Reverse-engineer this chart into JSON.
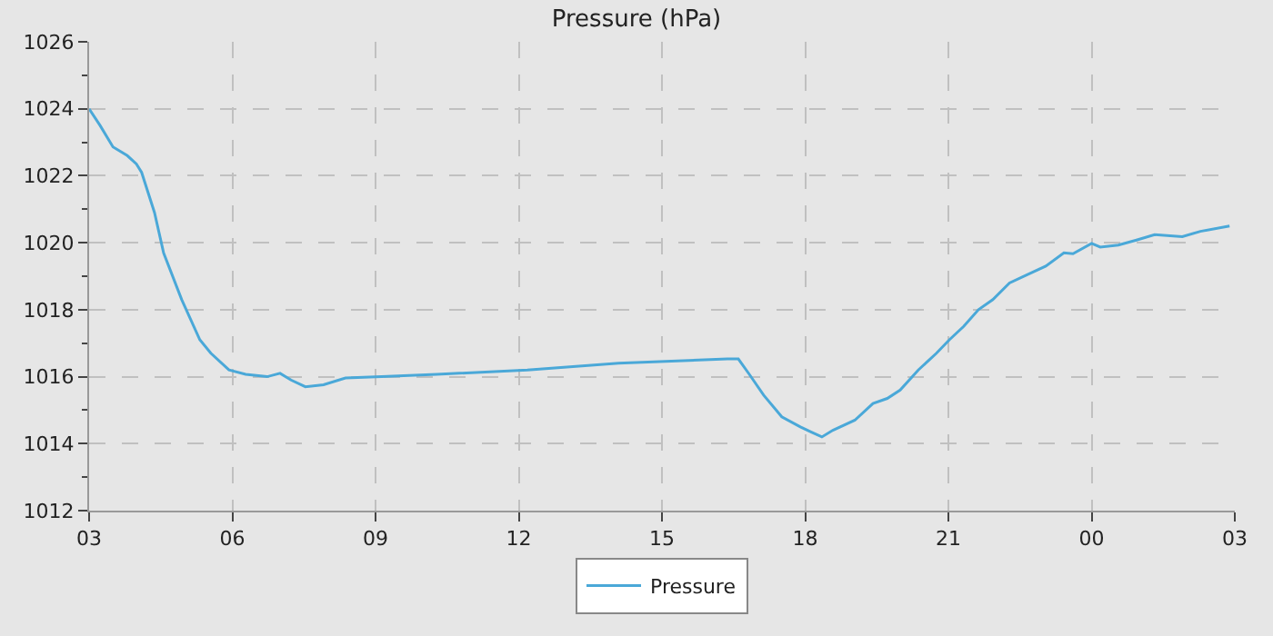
{
  "chart_data": {
    "type": "line",
    "title": "Pressure (hPa)",
    "legend": "bottom",
    "grid": true,
    "marker": "none",
    "line_style": "solid",
    "xlim": [
      3,
      27
    ],
    "xticks": [
      {
        "value": 3,
        "label": "03"
      },
      {
        "value": 6,
        "label": "06"
      },
      {
        "value": 9,
        "label": "09"
      },
      {
        "value": 12,
        "label": "12"
      },
      {
        "value": 15,
        "label": "15"
      },
      {
        "value": 18,
        "label": "18"
      },
      {
        "value": 21,
        "label": "21"
      },
      {
        "value": 24,
        "label": "00"
      },
      {
        "value": 27,
        "label": "03"
      }
    ],
    "ylim": [
      1012,
      1026
    ],
    "yticks": [
      1012,
      1014,
      1016,
      1018,
      1020,
      1022,
      1024,
      1026
    ],
    "x": [
      3.0,
      3.23,
      3.5,
      3.8,
      3.99,
      4.1,
      4.37,
      4.56,
      4.94,
      5.32,
      5.55,
      5.93,
      6.28,
      6.73,
      7.0,
      7.23,
      7.53,
      7.91,
      8.37,
      9.13,
      10.28,
      12.18,
      14.09,
      16.37,
      16.6,
      16.83,
      17.13,
      17.51,
      17.9,
      18.12,
      18.35,
      18.58,
      19.04,
      19.42,
      19.72,
      19.99,
      20.37,
      20.75,
      21.02,
      21.32,
      21.63,
      21.93,
      22.28,
      22.66,
      23.04,
      23.42,
      23.61,
      24.0,
      24.18,
      24.56,
      24.94,
      25.32,
      25.9,
      26.28,
      26.89
    ],
    "series": [
      {
        "name": "Pressure",
        "color": "#4aa8d8",
        "values": [
          1024.0,
          1023.5,
          1022.86,
          1022.6,
          1022.35,
          1022.1,
          1020.9,
          1019.7,
          1018.3,
          1017.1,
          1016.7,
          1016.2,
          1016.07,
          1016.0,
          1016.1,
          1015.9,
          1015.7,
          1015.76,
          1015.96,
          1016.0,
          1016.07,
          1016.2,
          1016.4,
          1016.53,
          1016.53,
          1016.07,
          1015.45,
          1014.8,
          1014.5,
          1014.35,
          1014.2,
          1014.4,
          1014.7,
          1015.2,
          1015.35,
          1015.6,
          1016.2,
          1016.7,
          1017.1,
          1017.5,
          1018.0,
          1018.3,
          1018.8,
          1019.05,
          1019.3,
          1019.7,
          1019.67,
          1019.98,
          1019.87,
          1019.93,
          1020.08,
          1020.24,
          1020.18,
          1020.34,
          1020.5
        ]
      }
    ]
  }
}
